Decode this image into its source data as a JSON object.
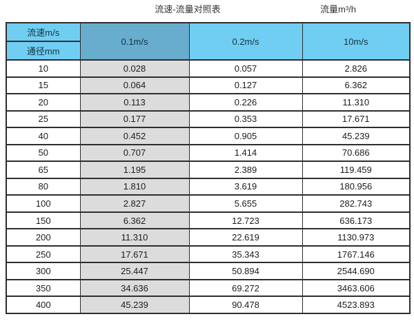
{
  "page": {
    "title_left": "流速-流量对照表",
    "title_right": "流量m³/h"
  },
  "colors": {
    "header_blue": "#71cef3",
    "header_dark_blue": "#68adce",
    "shaded_column_gray": "#dcdcdc",
    "border": "#2d2d2d",
    "background": "#ffffff"
  },
  "table": {
    "corner_top": "流速m/s",
    "corner_bottom": "通径mm",
    "columns": [
      "0.1m/s",
      "0.2m/s",
      "10m/s"
    ],
    "rows": [
      {
        "diameter": "10",
        "values": [
          "0.028",
          "0.057",
          "2.826"
        ]
      },
      {
        "diameter": "15",
        "values": [
          "0.064",
          "0.127",
          "6.362"
        ]
      },
      {
        "diameter": "20",
        "values": [
          "0.113",
          "0.226",
          "11.310"
        ]
      },
      {
        "diameter": "25",
        "values": [
          "0.177",
          "0.353",
          "17.671"
        ]
      },
      {
        "diameter": "40",
        "values": [
          "0.452",
          "0.905",
          "45.239"
        ]
      },
      {
        "diameter": "50",
        "values": [
          "0.707",
          "1.414",
          "70.686"
        ]
      },
      {
        "diameter": "65",
        "values": [
          "1.195",
          "2.389",
          "119.459"
        ]
      },
      {
        "diameter": "80",
        "values": [
          "1.810",
          "3.619",
          "180.956"
        ]
      },
      {
        "diameter": "100",
        "values": [
          "2.827",
          "5.655",
          "282.743"
        ]
      },
      {
        "diameter": "150",
        "values": [
          "6.362",
          "12.723",
          "636.173"
        ]
      },
      {
        "diameter": "200",
        "values": [
          "11.310",
          "22.619",
          "1130.973"
        ]
      },
      {
        "diameter": "250",
        "values": [
          "17.671",
          "35.343",
          "1767.146"
        ]
      },
      {
        "diameter": "300",
        "values": [
          "25.447",
          "50.894",
          "2544.690"
        ]
      },
      {
        "diameter": "350",
        "values": [
          "34.636",
          "69.272",
          "3463.606"
        ]
      },
      {
        "diameter": "400",
        "values": [
          "45.239",
          "90.478",
          "4523.893"
        ]
      }
    ]
  },
  "chart_data": {
    "type": "table",
    "title": "流速-流量对照表",
    "unit_label": "流量m³/h",
    "row_header": "通径mm",
    "column_header": "流速m/s",
    "categories": [
      10,
      15,
      20,
      25,
      40,
      50,
      65,
      80,
      100,
      150,
      200,
      250,
      300,
      350,
      400
    ],
    "series": [
      {
        "name": "0.1m/s",
        "values": [
          0.028,
          0.064,
          0.113,
          0.177,
          0.452,
          0.707,
          1.195,
          1.81,
          2.827,
          6.362,
          11.31,
          17.671,
          25.447,
          34.636,
          45.239
        ]
      },
      {
        "name": "0.2m/s",
        "values": [
          0.057,
          0.127,
          0.226,
          0.353,
          0.905,
          1.414,
          2.389,
          3.619,
          5.655,
          12.723,
          22.619,
          35.343,
          50.894,
          69.272,
          90.478
        ]
      },
      {
        "name": "10m/s",
        "values": [
          2.826,
          6.362,
          11.31,
          17.671,
          45.239,
          70.686,
          119.459,
          180.956,
          282.743,
          636.173,
          1130.973,
          1767.146,
          2544.69,
          3463.606,
          4523.893
        ]
      }
    ]
  }
}
